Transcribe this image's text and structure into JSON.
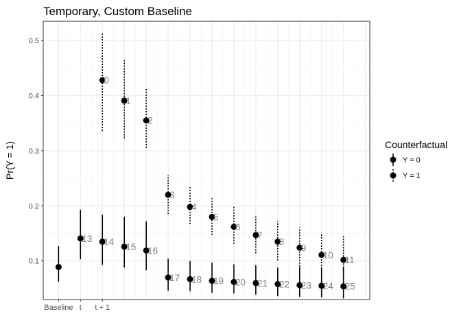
{
  "chart_data": {
    "type": "scatter",
    "title": "Temporary, Custom Baseline",
    "ylabel": "Pr(Y = 1)",
    "xlabel": "",
    "x_tick_labels": [
      {
        "label": "Baseline",
        "x": 1
      },
      {
        "label": "t",
        "x": 2
      },
      {
        "label": "t + 1",
        "x": 3
      }
    ],
    "xlim": [
      0.3,
      15.2
    ],
    "y_ticks": [
      0.1,
      0.2,
      0.3,
      0.4,
      0.5
    ],
    "y_tick_labels": [
      "0.1",
      "0.2",
      "0.3",
      "0.4",
      "0.5"
    ],
    "ylim": [
      0.03,
      0.535
    ],
    "grid": true,
    "legend": {
      "title": "Counterfactual",
      "placement": "right",
      "entries": [
        "Y = 0",
        "Y = 1"
      ]
    },
    "series": [
      {
        "name": "Y = 0",
        "line_style": "solid",
        "points": [
          {
            "x": 1,
            "y": 0.089,
            "lo": 0.062,
            "hi": 0.127,
            "label": ""
          },
          {
            "x": 2,
            "y": 0.141,
            "lo": 0.103,
            "hi": 0.193,
            "label": "13"
          },
          {
            "x": 3,
            "y": 0.135,
            "lo": 0.093,
            "hi": 0.184,
            "label": "14"
          },
          {
            "x": 4,
            "y": 0.126,
            "lo": 0.088,
            "hi": 0.18,
            "label": "15"
          },
          {
            "x": 5,
            "y": 0.119,
            "lo": 0.083,
            "hi": 0.172,
            "label": "16"
          },
          {
            "x": 6,
            "y": 0.07,
            "lo": 0.046,
            "hi": 0.104,
            "label": "17"
          },
          {
            "x": 7,
            "y": 0.067,
            "lo": 0.045,
            "hi": 0.1,
            "label": "18"
          },
          {
            "x": 8,
            "y": 0.064,
            "lo": 0.042,
            "hi": 0.097,
            "label": "19"
          },
          {
            "x": 9,
            "y": 0.062,
            "lo": 0.041,
            "hi": 0.094,
            "label": "20"
          },
          {
            "x": 10,
            "y": 0.06,
            "lo": 0.039,
            "hi": 0.092,
            "label": "21"
          },
          {
            "x": 11,
            "y": 0.058,
            "lo": 0.036,
            "hi": 0.088,
            "label": "22"
          },
          {
            "x": 12,
            "y": 0.056,
            "lo": 0.035,
            "hi": 0.089,
            "label": "23"
          },
          {
            "x": 13,
            "y": 0.055,
            "lo": 0.034,
            "hi": 0.088,
            "label": "24"
          },
          {
            "x": 14,
            "y": 0.054,
            "lo": 0.032,
            "hi": 0.088,
            "label": "25"
          }
        ]
      },
      {
        "name": "Y = 1",
        "line_style": "dotted",
        "points": [
          {
            "x": 3,
            "y": 0.428,
            "lo": 0.336,
            "hi": 0.513,
            "label": "0"
          },
          {
            "x": 4,
            "y": 0.391,
            "lo": 0.323,
            "hi": 0.465,
            "label": "1"
          },
          {
            "x": 5,
            "y": 0.355,
            "lo": 0.305,
            "hi": 0.412,
            "label": "2"
          },
          {
            "x": 6,
            "y": 0.22,
            "lo": 0.185,
            "hi": 0.256,
            "label": "3"
          },
          {
            "x": 7,
            "y": 0.198,
            "lo": 0.167,
            "hi": 0.235,
            "label": "4"
          },
          {
            "x": 8,
            "y": 0.18,
            "lo": 0.147,
            "hi": 0.214,
            "label": "5"
          },
          {
            "x": 9,
            "y": 0.162,
            "lo": 0.131,
            "hi": 0.199,
            "label": "6"
          },
          {
            "x": 10,
            "y": 0.147,
            "lo": 0.114,
            "hi": 0.184,
            "label": "7"
          },
          {
            "x": 11,
            "y": 0.135,
            "lo": 0.101,
            "hi": 0.172,
            "label": "8"
          },
          {
            "x": 12,
            "y": 0.124,
            "lo": 0.09,
            "hi": 0.161,
            "label": "9"
          },
          {
            "x": 13,
            "y": 0.111,
            "lo": 0.081,
            "hi": 0.151,
            "label": "10"
          },
          {
            "x": 14,
            "y": 0.102,
            "lo": 0.073,
            "hi": 0.145,
            "label": "11"
          }
        ]
      }
    ]
  }
}
